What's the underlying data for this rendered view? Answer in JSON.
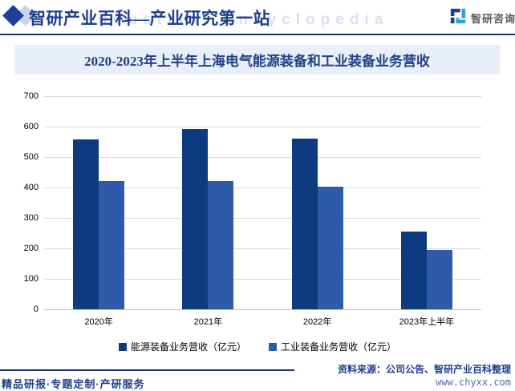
{
  "header": {
    "brand_title": "智研产业百科—产业研究第一站",
    "brand_watermark": "Industrial Encyclopedia",
    "logo_text": "智研咨询"
  },
  "chart_data": {
    "type": "bar",
    "title": "2020-2023年上半年上海电气能源装备和工业装备业务营收",
    "categories": [
      "2020年",
      "2021年",
      "2022年",
      "2023年上半年"
    ],
    "series": [
      {
        "name": "能源装备业务营收（亿元）",
        "color": "#0e3a7e",
        "values": [
          558,
          593,
          561,
          255
        ]
      },
      {
        "name": "工业装备业务营收（亿元）",
        "color": "#2f5aa7",
        "values": [
          421,
          422,
          403,
          194
        ]
      }
    ],
    "ylim": [
      0,
      700
    ],
    "yticks": [
      0,
      100,
      200,
      300,
      400,
      500,
      600,
      700
    ],
    "grid": true,
    "legend_position": "bottom",
    "xlabel": "",
    "ylabel": ""
  },
  "footer": {
    "tagline": "精品研报·专题定制·产研服务",
    "source": "资料来源：公司公告、智研产业百科整理",
    "website": "www.chyxx.com"
  },
  "colors": {
    "navy_rule": "#16356e",
    "brand_text": "#1e3e8f",
    "band_background": "#e9eff9",
    "title_text": "#1f4188",
    "gridline": "#d9d9d9",
    "series1_dark_blue": "#0e3a7e",
    "series2_medium_blue": "#2f5aa7",
    "diamond_dark": "#1e3f96",
    "diamond_light": "#c9d4ea",
    "logo_light_blue": "#2aa0dc",
    "website_text": "#4f6cae"
  }
}
